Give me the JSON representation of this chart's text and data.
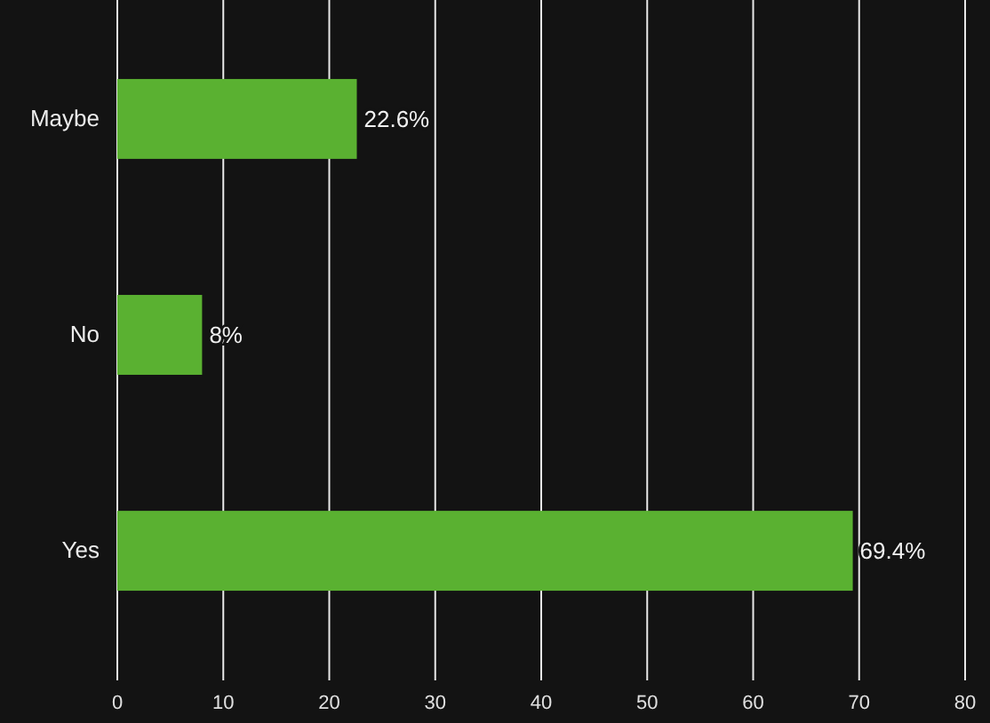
{
  "chart_data": {
    "type": "bar",
    "orientation": "horizontal",
    "categories": [
      "Maybe",
      "No",
      "Yes"
    ],
    "values": [
      22.6,
      8,
      69.4
    ],
    "value_labels": [
      "22.6%",
      "8%",
      "69.4%"
    ],
    "color": "#5ab131",
    "xlim": [
      0,
      80
    ],
    "xticks": [
      0,
      10,
      20,
      30,
      40,
      50,
      60,
      70,
      80
    ],
    "grid": "x"
  }
}
